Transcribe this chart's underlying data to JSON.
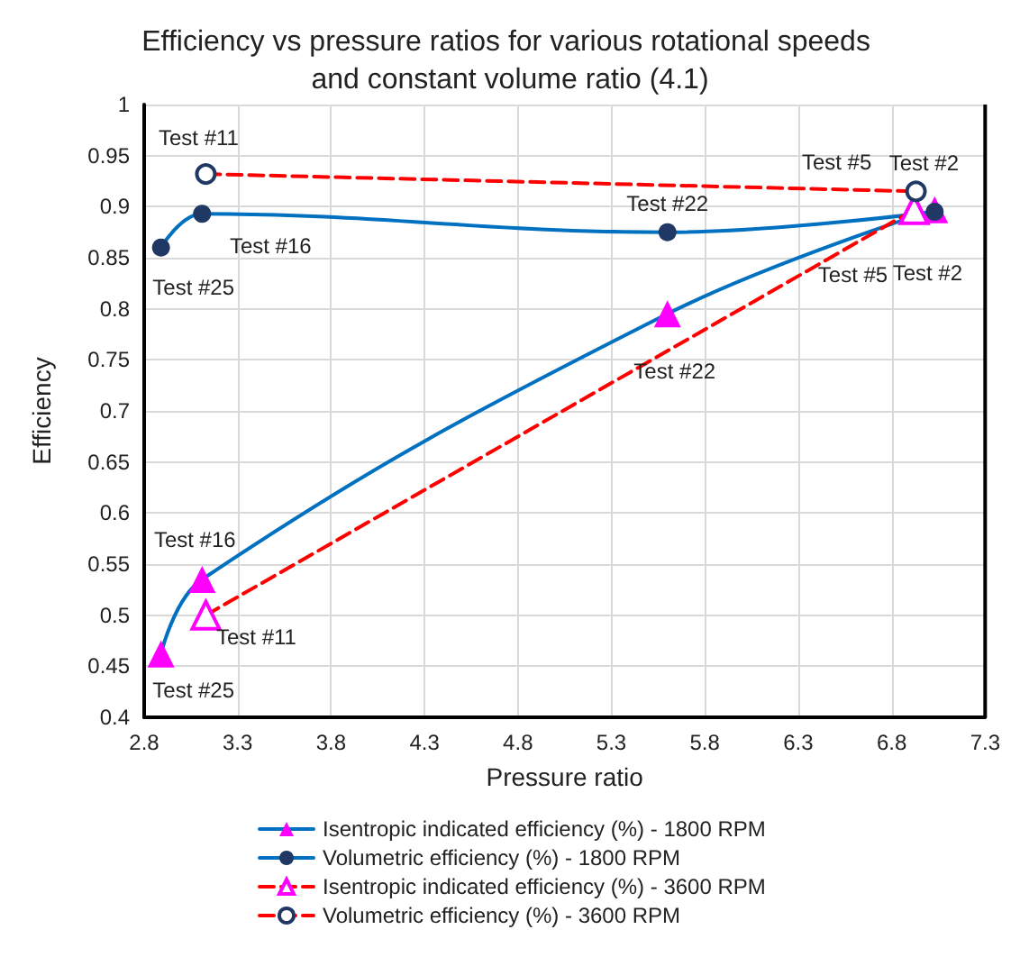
{
  "chart_data": {
    "type": "line",
    "title": "Efficiency vs pressure ratios for various rotational speeds and constant volume ratio (4.1)",
    "xlabel": "Pressure ratio",
    "ylabel": "Efficiency",
    "xlim": [
      2.8,
      7.3
    ],
    "xticks": [
      2.8,
      3.3,
      3.8,
      4.3,
      4.8,
      5.3,
      5.8,
      6.3,
      6.8,
      7.3
    ],
    "ylim": [
      0.4,
      1
    ],
    "yticks": [
      0.4,
      0.45,
      0.5,
      0.55,
      0.6,
      0.65,
      0.7,
      0.75,
      0.8,
      0.85,
      0.9,
      0.95,
      1
    ],
    "grid": true,
    "legend": "bottom",
    "series": [
      {
        "name": "Isentropic indicated efficiency (%) - 1800 RPM",
        "color": "#0070c0",
        "marker": "triangle",
        "line_style": "solid",
        "x": [
          2.89,
          3.11,
          5.6,
          7.03
        ],
        "values": [
          0.462,
          0.535,
          0.795,
          0.897
        ]
      },
      {
        "name": "Volumetric efficiency (%) - 1800 RPM",
        "color": "#0070c0",
        "marker": "circle",
        "line_style": "solid",
        "x": [
          2.89,
          3.11,
          5.6,
          7.03
        ],
        "values": [
          0.86,
          0.893,
          0.875,
          0.895
        ]
      },
      {
        "name": "Isentropic indicated efficiency (%) - 3600 RPM",
        "color": "#ff0000",
        "marker": "triangle",
        "line_style": "dashed",
        "x": [
          3.13,
          6.92
        ],
        "values": [
          0.5,
          0.897
        ]
      },
      {
        "name": "Volumetric efficiency (%) - 3600 RPM",
        "color": "#ff0000",
        "marker": "circle",
        "line_style": "dashed",
        "x": [
          3.13,
          6.93
        ],
        "values": [
          0.932,
          0.915
        ]
      }
    ],
    "annotations": [
      {
        "text": "Test #11",
        "x": 3.13,
        "y": 0.932
      },
      {
        "text": "Test #11",
        "x": 3.13,
        "y": 0.5
      },
      {
        "text": "Test #16",
        "x": 3.11,
        "y": 0.893
      },
      {
        "text": "Test #16",
        "x": 3.11,
        "y": 0.535
      },
      {
        "text": "Test #25",
        "x": 2.89,
        "y": 0.86
      },
      {
        "text": "Test #25",
        "x": 2.89,
        "y": 0.462
      },
      {
        "text": "Test #22",
        "x": 5.6,
        "y": 0.875
      },
      {
        "text": "Test #22",
        "x": 5.6,
        "y": 0.795
      },
      {
        "text": "Test #5",
        "x": 6.93,
        "y": 0.915
      },
      {
        "text": "Test #5",
        "x": 6.92,
        "y": 0.897
      },
      {
        "text": "Test #2",
        "x": 7.03,
        "y": 0.897
      },
      {
        "text": "Test #2",
        "x": 7.03,
        "y": 0.895
      }
    ]
  }
}
